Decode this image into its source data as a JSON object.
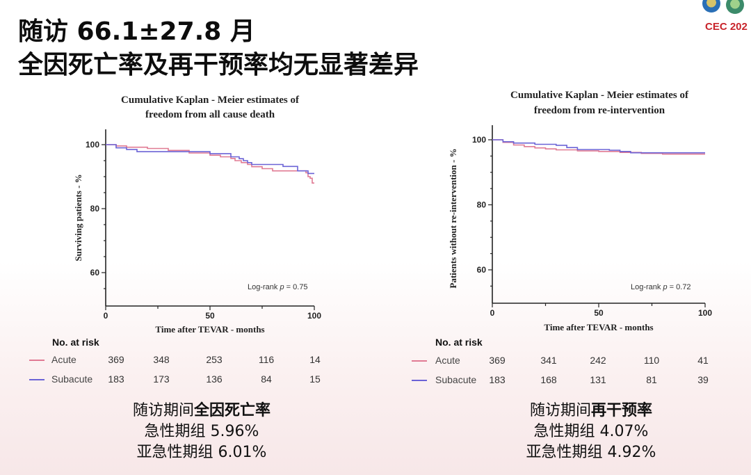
{
  "header": {
    "title_line1": "随访 66.1±27.8 月",
    "title_line2": "全因死亡率及再干预率均无显著差异"
  },
  "logo": {
    "text": "CEC 202"
  },
  "colors": {
    "acute": "#e07a93",
    "subacute": "#6b63d6"
  },
  "chart_data": [
    {
      "type": "line",
      "title_line1": "Cumulative Kaplan - Meier estimates of",
      "title_line2": "freedom from all cause death",
      "xlabel": "Time after TEVAR - months",
      "ylabel": "Surviving patients - %",
      "xlim": [
        0,
        100
      ],
      "ylim": [
        50,
        105
      ],
      "x_ticks": [
        0,
        50,
        100
      ],
      "y_ticks": [
        60,
        80,
        100
      ],
      "annotation_prefix": "Log-rank ",
      "annotation_p": "p",
      "annotation_suffix": " = 0.75",
      "series": [
        {
          "name": "Acute",
          "x": [
            0,
            5,
            10,
            20,
            30,
            40,
            50,
            55,
            60,
            62,
            65,
            68,
            70,
            75,
            80,
            85,
            90,
            95,
            96,
            97,
            98,
            99,
            100
          ],
          "y": [
            100,
            99.6,
            99.2,
            98.8,
            98.2,
            97.4,
            96.7,
            96.2,
            95.7,
            95.0,
            94.4,
            93.8,
            93.1,
            92.5,
            91.8,
            91.8,
            91.8,
            91.8,
            91.2,
            90.0,
            89.5,
            88.0,
            88.0
          ]
        },
        {
          "name": "Subacute",
          "x": [
            0,
            5,
            10,
            15,
            20,
            30,
            40,
            50,
            60,
            64,
            66,
            68,
            70,
            75,
            80,
            85,
            90,
            92,
            95,
            97,
            100
          ],
          "y": [
            100,
            99.0,
            98.5,
            97.8,
            97.8,
            97.8,
            97.8,
            97.2,
            96.2,
            95.6,
            95.0,
            94.4,
            93.8,
            93.8,
            93.8,
            93.2,
            93.2,
            91.8,
            91.8,
            91.0,
            91.0
          ]
        }
      ]
    },
    {
      "type": "line",
      "title_line1": "Cumulative Kaplan - Meier estimates of",
      "title_line2": "freedom from re-intervention",
      "xlabel": "Time after TEVAR - months",
      "ylabel": "Patients without re-intervention - %",
      "xlim": [
        0,
        100
      ],
      "ylim": [
        50,
        105
      ],
      "x_ticks": [
        0,
        50,
        100
      ],
      "y_ticks": [
        60,
        80,
        100
      ],
      "annotation_prefix": "Log-rank ",
      "annotation_p": "p",
      "annotation_suffix": " = 0.72",
      "series": [
        {
          "name": "Acute",
          "x": [
            0,
            5,
            10,
            15,
            20,
            25,
            30,
            40,
            50,
            60,
            70,
            80,
            90,
            100
          ],
          "y": [
            100,
            99.2,
            98.4,
            97.9,
            97.5,
            97.2,
            96.9,
            96.6,
            96.4,
            96.1,
            95.8,
            95.6,
            95.6,
            95.6
          ]
        },
        {
          "name": "Subacute",
          "x": [
            0,
            5,
            10,
            20,
            30,
            35,
            40,
            50,
            55,
            60,
            65,
            70,
            80,
            90,
            100
          ],
          "y": [
            100,
            99.4,
            99.0,
            98.6,
            98.3,
            97.6,
            97.0,
            97.0,
            96.8,
            96.4,
            96.0,
            96.0,
            96.0,
            96.0,
            96.0
          ]
        }
      ]
    }
  ],
  "risk_tables": [
    {
      "title": "No. at risk",
      "rows": [
        {
          "name": "Acute",
          "values": [
            "369",
            "348",
            "253",
            "116",
            "14"
          ]
        },
        {
          "name": "Subacute",
          "values": [
            "183",
            "173",
            "136",
            "84",
            "15"
          ]
        }
      ]
    },
    {
      "title": "No. at risk",
      "rows": [
        {
          "name": "Acute",
          "values": [
            "369",
            "341",
            "242",
            "110",
            "41"
          ]
        },
        {
          "name": "Subacute",
          "values": [
            "183",
            "168",
            "131",
            "81",
            "39"
          ]
        }
      ]
    }
  ],
  "summaries": [
    {
      "prefix": "随访期间",
      "bold": "全因死亡率",
      "line2": "急性期组 5.96%",
      "line3": "亚急性期组 6.01%"
    },
    {
      "prefix": "随访期间",
      "bold": "再干预率",
      "line2": "急性期组 4.07%",
      "line3": "亚急性期组 4.92%"
    }
  ]
}
